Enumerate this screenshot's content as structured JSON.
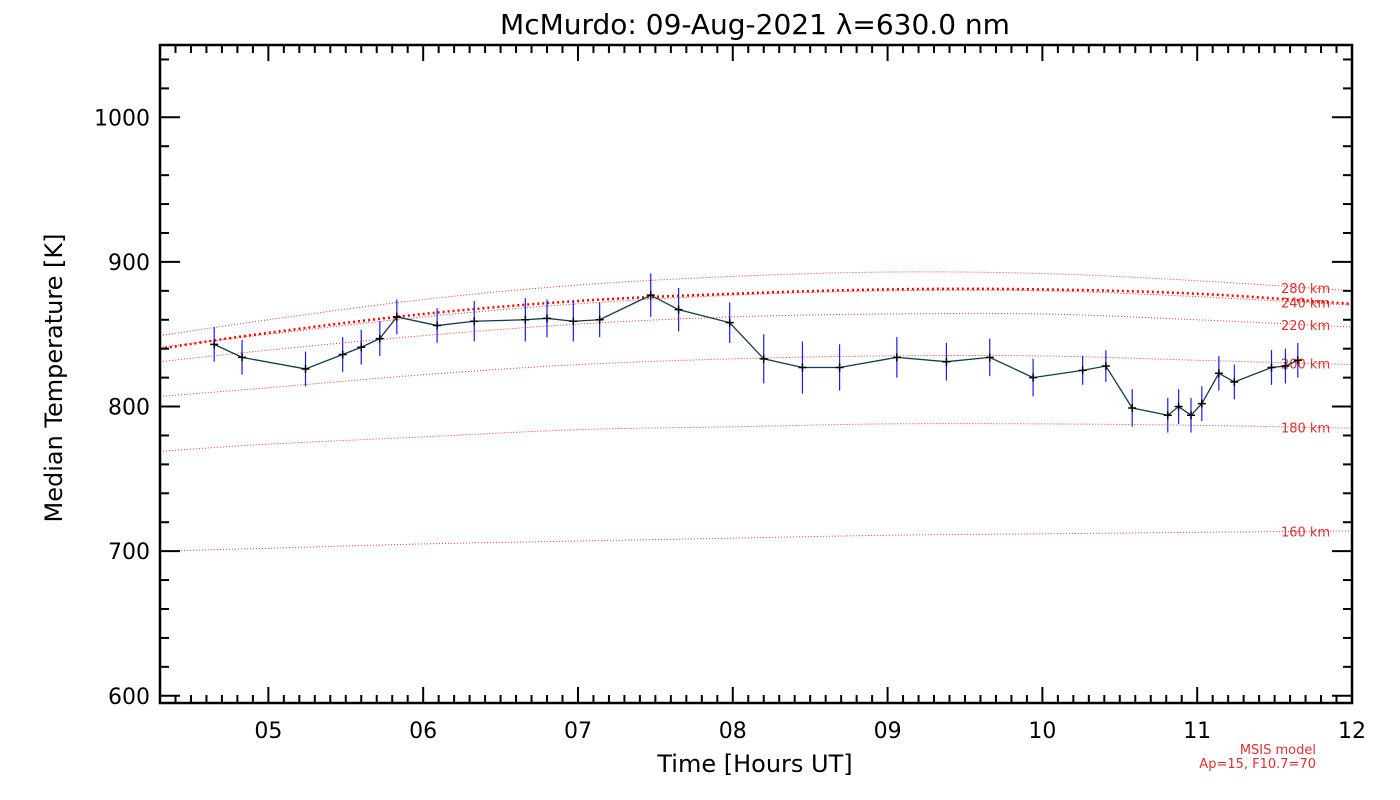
{
  "chart_data": {
    "type": "line",
    "title": "McMurdo: 09-Aug-2021 λ=630.0 nm",
    "xlabel": "Time [Hours UT]",
    "ylabel": "Median Temperature [K]",
    "xlim": [
      4.3,
      12.0
    ],
    "ylim": [
      595,
      1050
    ],
    "xticks": [
      5,
      6,
      7,
      8,
      9,
      10,
      11,
      12
    ],
    "xtick_labels": [
      "05",
      "06",
      "07",
      "08",
      "09",
      "10",
      "11",
      "12"
    ],
    "yticks": [
      600,
      700,
      800,
      900,
      1000
    ],
    "ytick_labels": [
      "600",
      "700",
      "800",
      "900",
      "1000"
    ],
    "series": [
      {
        "name": "Median Temperature",
        "color": "#0d3b4f",
        "errorbar_color": "#1a1aff",
        "x": [
          4.65,
          4.83,
          5.24,
          5.48,
          5.6,
          5.72,
          5.83,
          6.09,
          6.33,
          6.66,
          6.8,
          6.97,
          7.14,
          7.47,
          7.65,
          7.98,
          8.2,
          8.45,
          8.69,
          9.06,
          9.38,
          9.66,
          9.94,
          10.26,
          10.41,
          10.58,
          10.81,
          10.88,
          10.96,
          11.03,
          11.14,
          11.24,
          11.48,
          11.57,
          11.65
        ],
        "y": [
          843,
          834,
          826,
          836,
          841,
          847,
          862,
          856,
          859,
          860,
          861,
          859,
          860,
          877,
          867,
          858,
          833,
          827,
          827,
          834,
          831,
          834,
          820,
          825,
          828,
          799,
          794,
          800,
          794,
          802,
          823,
          817,
          827,
          828,
          832
        ],
        "err": [
          12,
          12,
          12,
          12,
          12,
          12,
          12,
          12,
          14,
          15,
          13,
          14,
          12,
          15,
          15,
          14,
          17,
          18,
          16,
          14,
          13,
          13,
          13,
          10,
          11,
          13,
          12,
          12,
          12,
          12,
          12,
          12,
          12,
          12,
          12
        ]
      }
    ],
    "msis_curves": [
      {
        "label": "160 km",
        "color": "#e03030",
        "x": [
          4.3,
          5,
          6,
          7,
          8,
          9,
          10,
          11,
          12
        ],
        "y": [
          700,
          702,
          705,
          707,
          709,
          711,
          712,
          713,
          714
        ]
      },
      {
        "label": "180 km",
        "color": "#e03030",
        "x": [
          4.3,
          5,
          6,
          7,
          8,
          9,
          10,
          11,
          12
        ],
        "y": [
          769,
          774,
          779,
          784,
          786,
          788,
          788,
          787,
          785
        ]
      },
      {
        "label": "200 km",
        "color": "#e03030",
        "x": [
          4.3,
          5,
          6,
          7,
          8,
          9,
          10,
          11,
          12
        ],
        "y": [
          807,
          813,
          822,
          829,
          833,
          835,
          835,
          832,
          829
        ]
      },
      {
        "label": "220 km",
        "color": "#e03030",
        "x": [
          4.3,
          5,
          6,
          7,
          8,
          9,
          10,
          11,
          12
        ],
        "y": [
          831,
          839,
          849,
          857,
          862,
          864,
          864,
          860,
          855
        ]
      },
      {
        "label": "240 km",
        "color": "#e03030",
        "x": [
          4.3,
          5,
          6,
          7,
          8,
          9,
          10,
          11,
          12
        ],
        "y": [
          841,
          850,
          862,
          871,
          877,
          880,
          880,
          876,
          870
        ]
      },
      {
        "label": "280 km",
        "color": "#e03030",
        "x": [
          4.3,
          5,
          6,
          7,
          8,
          9,
          10,
          11,
          12
        ],
        "y": [
          849,
          860,
          874,
          884,
          890,
          893,
          892,
          887,
          880
        ]
      }
    ],
    "msis_label_x": 11.7,
    "fitted_curve": {
      "color": "#ff0000",
      "x": [
        4.3,
        5,
        6,
        7,
        8,
        9,
        10,
        11,
        12
      ],
      "y": [
        840,
        851,
        864,
        873,
        878,
        881,
        881,
        878,
        871
      ]
    },
    "footer": {
      "line1": "MSIS model",
      "line2": "Ap=15, F10.7=70"
    }
  }
}
